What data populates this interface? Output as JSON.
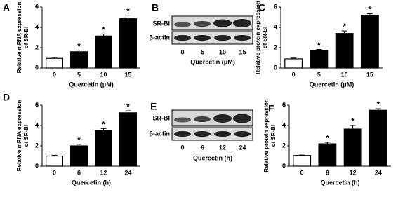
{
  "chart_data": [
    {
      "type": "bar",
      "panel": "A",
      "ylabel": [
        "Relative mRNA expression",
        "of SR-BI"
      ],
      "xlabel": "Quercetin (μM)",
      "categories": [
        "0",
        "5",
        "10",
        "15"
      ],
      "values": [
        0.95,
        1.6,
        3.15,
        4.85
      ],
      "errors": [
        0.1,
        0.15,
        0.2,
        0.35
      ],
      "significance": [
        null,
        "*",
        "*",
        "*"
      ],
      "colors": [
        "#ffffff",
        "#000000",
        "#000000",
        "#000000"
      ],
      "ylim": [
        0,
        6
      ],
      "yticks": [
        0,
        2,
        4,
        6
      ]
    },
    {
      "type": "bar",
      "panel": "C",
      "ylabel": [
        "Relative protein expression",
        "of SR-BI"
      ],
      "xlabel": "Quercetin (μM)",
      "categories": [
        "0",
        "5",
        "10",
        "15"
      ],
      "values": [
        0.9,
        1.75,
        3.4,
        5.2
      ],
      "errors": [
        0.08,
        0.08,
        0.25,
        0.15
      ],
      "significance": [
        null,
        "*",
        "*",
        "*"
      ],
      "colors": [
        "#ffffff",
        "#000000",
        "#000000",
        "#000000"
      ],
      "ylim": [
        0,
        6
      ],
      "yticks": [
        0,
        2,
        4,
        6
      ]
    },
    {
      "type": "bar",
      "panel": "D",
      "ylabel": [
        "Relative mRNA expression",
        "of SR-BI"
      ],
      "xlabel": "Quercetin (h)",
      "categories": [
        "0",
        "6",
        "12",
        "24"
      ],
      "values": [
        1.0,
        2.0,
        3.5,
        5.25
      ],
      "errors": [
        0.08,
        0.15,
        0.2,
        0.2
      ],
      "significance": [
        null,
        "*",
        "*",
        "*"
      ],
      "colors": [
        "#ffffff",
        "#000000",
        "#000000",
        "#000000"
      ],
      "ylim": [
        0,
        6
      ],
      "yticks": [
        0,
        2,
        4,
        6
      ]
    },
    {
      "type": "bar",
      "panel": "F",
      "ylabel": [
        "Relative protein expression",
        "of SR-BI"
      ],
      "xlabel": "Quercetin (h)",
      "categories": [
        "0",
        "6",
        "12",
        "24"
      ],
      "values": [
        1.05,
        2.2,
        3.65,
        5.5
      ],
      "errors": [
        0.05,
        0.15,
        0.35,
        0.15
      ],
      "significance": [
        null,
        "*",
        "*",
        "*"
      ],
      "colors": [
        "#ffffff",
        "#000000",
        "#000000",
        "#000000"
      ],
      "ylim": [
        0,
        6
      ],
      "yticks": [
        0,
        2,
        4,
        6
      ]
    }
  ],
  "blots": [
    {
      "panel": "B",
      "rows": [
        "SR-BI",
        "β-actin"
      ],
      "lanes": [
        "0",
        "5",
        "10",
        "15"
      ],
      "xlabel": "Quercetin (μM)"
    },
    {
      "panel": "E",
      "rows": [
        "SR-BI",
        "β-actin"
      ],
      "lanes": [
        "0",
        "6",
        "12",
        "24"
      ],
      "xlabel": "Quercetin (h)"
    }
  ]
}
